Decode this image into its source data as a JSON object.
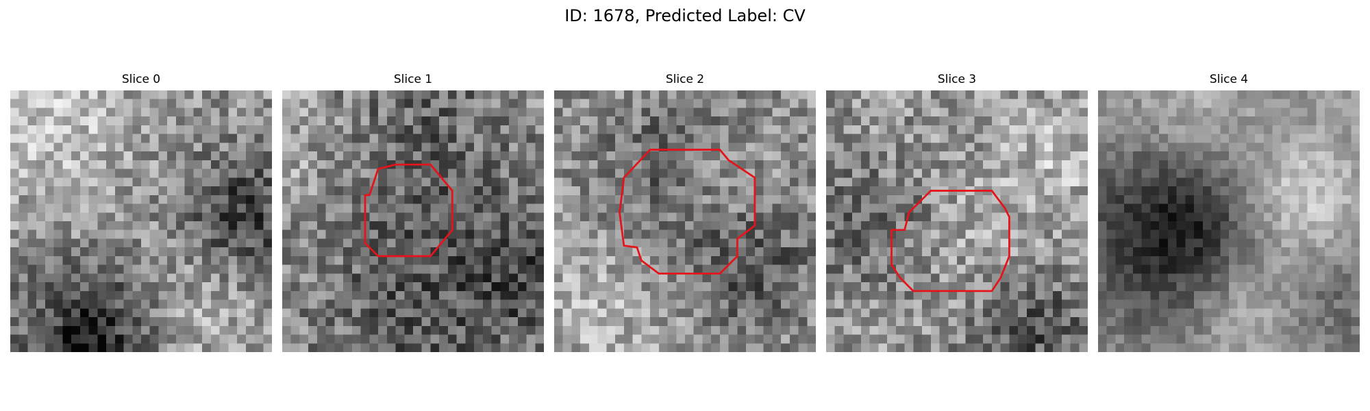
{
  "figure": {
    "title": "ID: 1678, Predicted Label: CV"
  },
  "slices": [
    {
      "title": "Slice 0",
      "has_outline": false,
      "outline_color": "#e4141b"
    },
    {
      "title": "Slice 1",
      "has_outline": true,
      "outline_color": "#e4141b"
    },
    {
      "title": "Slice 2",
      "has_outline": true,
      "outline_color": "#e4141b"
    },
    {
      "title": "Slice 3",
      "has_outline": true,
      "outline_color": "#e4141b"
    },
    {
      "title": "Slice 4",
      "has_outline": false,
      "outline_color": "#e4141b"
    }
  ],
  "colormap": "gray"
}
